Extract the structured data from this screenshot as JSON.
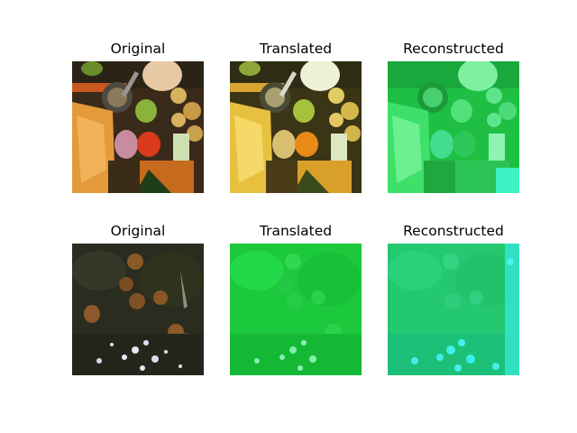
{
  "rows": [
    {
      "panels": [
        {
          "title": "Original",
          "image": "fruit-and-vegetables-photo"
        },
        {
          "title": "Translated",
          "image": "fruit-and-vegetables-translated-photo"
        },
        {
          "title": "Reconstructed",
          "image": "fruit-and-vegetables-reconstructed-green-photo"
        }
      ]
    },
    {
      "panels": [
        {
          "title": "Original",
          "image": "orange-tree-photo"
        },
        {
          "title": "Translated",
          "image": "orange-tree-translated-green-photo"
        },
        {
          "title": "Reconstructed",
          "image": "orange-tree-reconstructed-cyan-photo"
        }
      ]
    }
  ]
}
